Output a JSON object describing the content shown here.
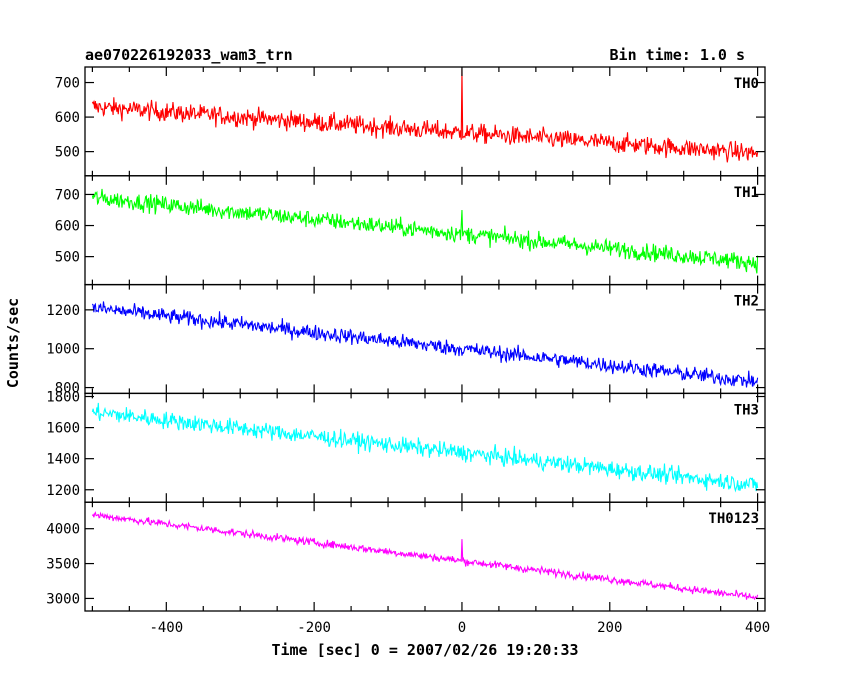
{
  "chart_data": {
    "type": "line",
    "title": "ae070226192033_wam3_trn",
    "subtitle": "Bin time: 1.0 s",
    "xlabel": "Time [sec] 0 = 2007/02/26 19:20:33",
    "ylabel": "Counts/sec",
    "xlim": [
      -510,
      410
    ],
    "xticks": [
      -400,
      -200,
      0,
      200,
      400
    ],
    "grid": false,
    "panels": [
      {
        "name": "TH0",
        "color": "#ff0000",
        "ylim": [
          430,
          745
        ],
        "yticks": [
          500,
          600,
          700
        ],
        "start": 630,
        "end": 495,
        "noise": 28,
        "spike_x": 0,
        "spike_value": 740
      },
      {
        "name": "TH1",
        "color": "#00ff00",
        "ylim": [
          410,
          760
        ],
        "yticks": [
          500,
          600,
          700
        ],
        "start": 690,
        "end": 480,
        "noise": 28,
        "spike_x": 0,
        "spike_value": 650
      },
      {
        "name": "TH2",
        "color": "#0000ff",
        "ylim": [
          770,
          1330
        ],
        "yticks": [
          800,
          1000,
          1200
        ],
        "start": 1210,
        "end": 830,
        "noise": 40,
        "spike_x": null,
        "spike_value": null
      },
      {
        "name": "TH3",
        "color": "#00ffff",
        "ylim": [
          1120,
          1820
        ],
        "yticks": [
          1200,
          1400,
          1600,
          1800
        ],
        "start": 1700,
        "end": 1230,
        "noise": 55,
        "spike_x": null,
        "spike_value": null
      },
      {
        "name": "TH0123",
        "color": "#ff00ff",
        "ylim": [
          2820,
          4380
        ],
        "yticks": [
          3000,
          3500,
          4000
        ],
        "start": 4200,
        "end": 3010,
        "noise": 55,
        "spike_x": 0,
        "spike_value": 3850
      }
    ]
  }
}
